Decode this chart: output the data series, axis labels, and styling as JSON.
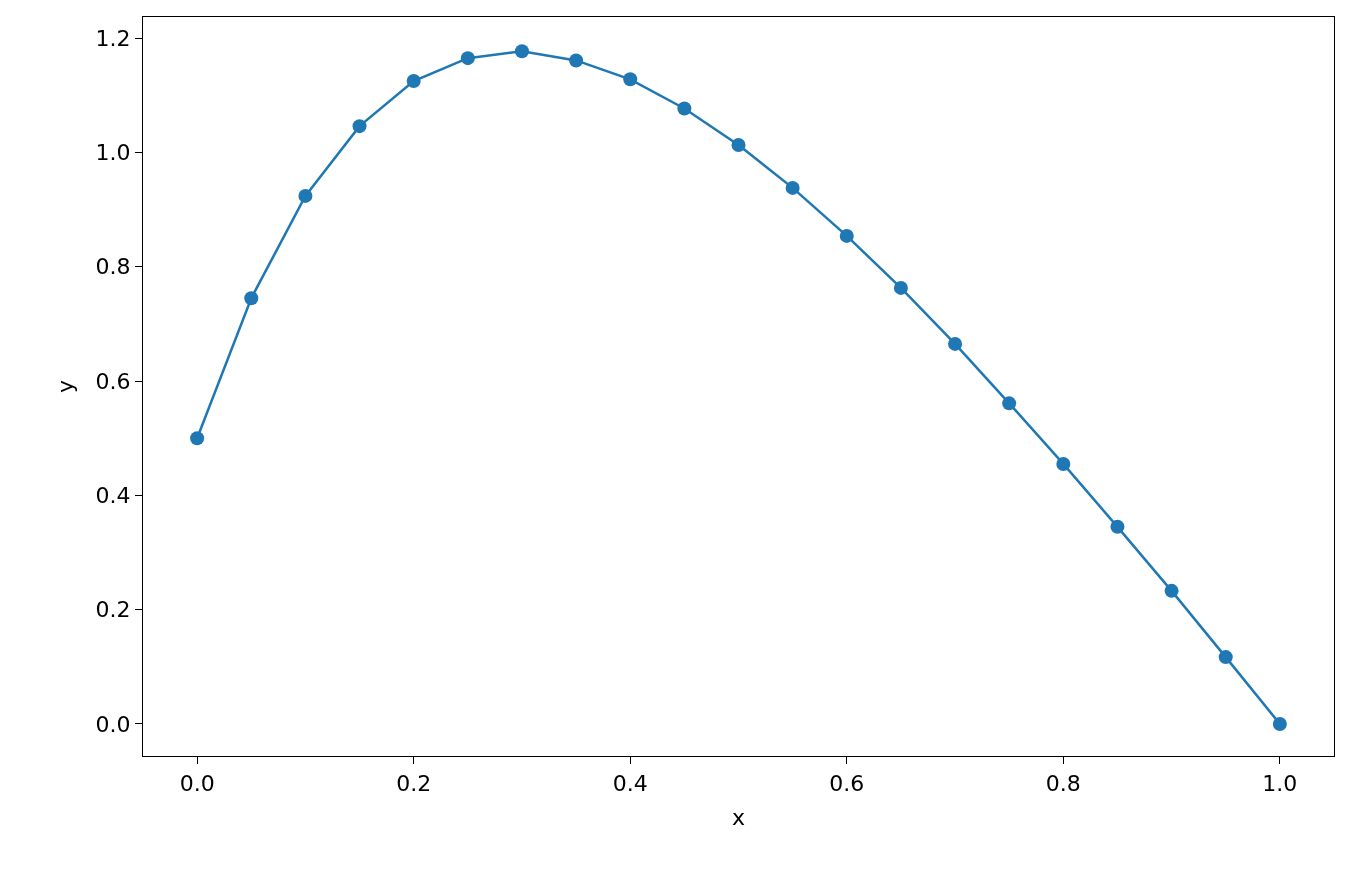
{
  "chart_data": {
    "type": "line",
    "xlabel": "x",
    "ylabel": "y",
    "x": [
      0.0,
      0.05,
      0.1,
      0.15,
      0.2,
      0.25,
      0.3,
      0.35,
      0.4,
      0.45,
      0.5,
      0.55,
      0.6,
      0.65,
      0.7,
      0.75,
      0.8,
      0.85,
      0.9,
      0.95,
      1.0
    ],
    "series": [
      {
        "color": "#1f77b4",
        "values": [
          0.5,
          0.745,
          0.924,
          1.046,
          1.125,
          1.165,
          1.177,
          1.161,
          1.128,
          1.077,
          1.013,
          0.938,
          0.854,
          0.763,
          0.665,
          0.561,
          0.455,
          0.345,
          0.233,
          0.117,
          0.0
        ]
      }
    ],
    "xlim": [
      -0.05,
      1.05
    ],
    "xticks": [
      {
        "value": 0,
        "label": "0.0"
      },
      0.2,
      0.4,
      0.6,
      0.8,
      {
        "value": 1,
        "label": "1.0"
      }
    ],
    "ylim": [
      -0.056,
      1.237
    ],
    "yticks": [
      {
        "value": 0,
        "label": "0.0"
      },
      0.2,
      0.4,
      0.6,
      0.8,
      {
        "value": 1,
        "label": "1.0"
      },
      1.2
    ],
    "marker": "circle",
    "line_style": "solid"
  }
}
